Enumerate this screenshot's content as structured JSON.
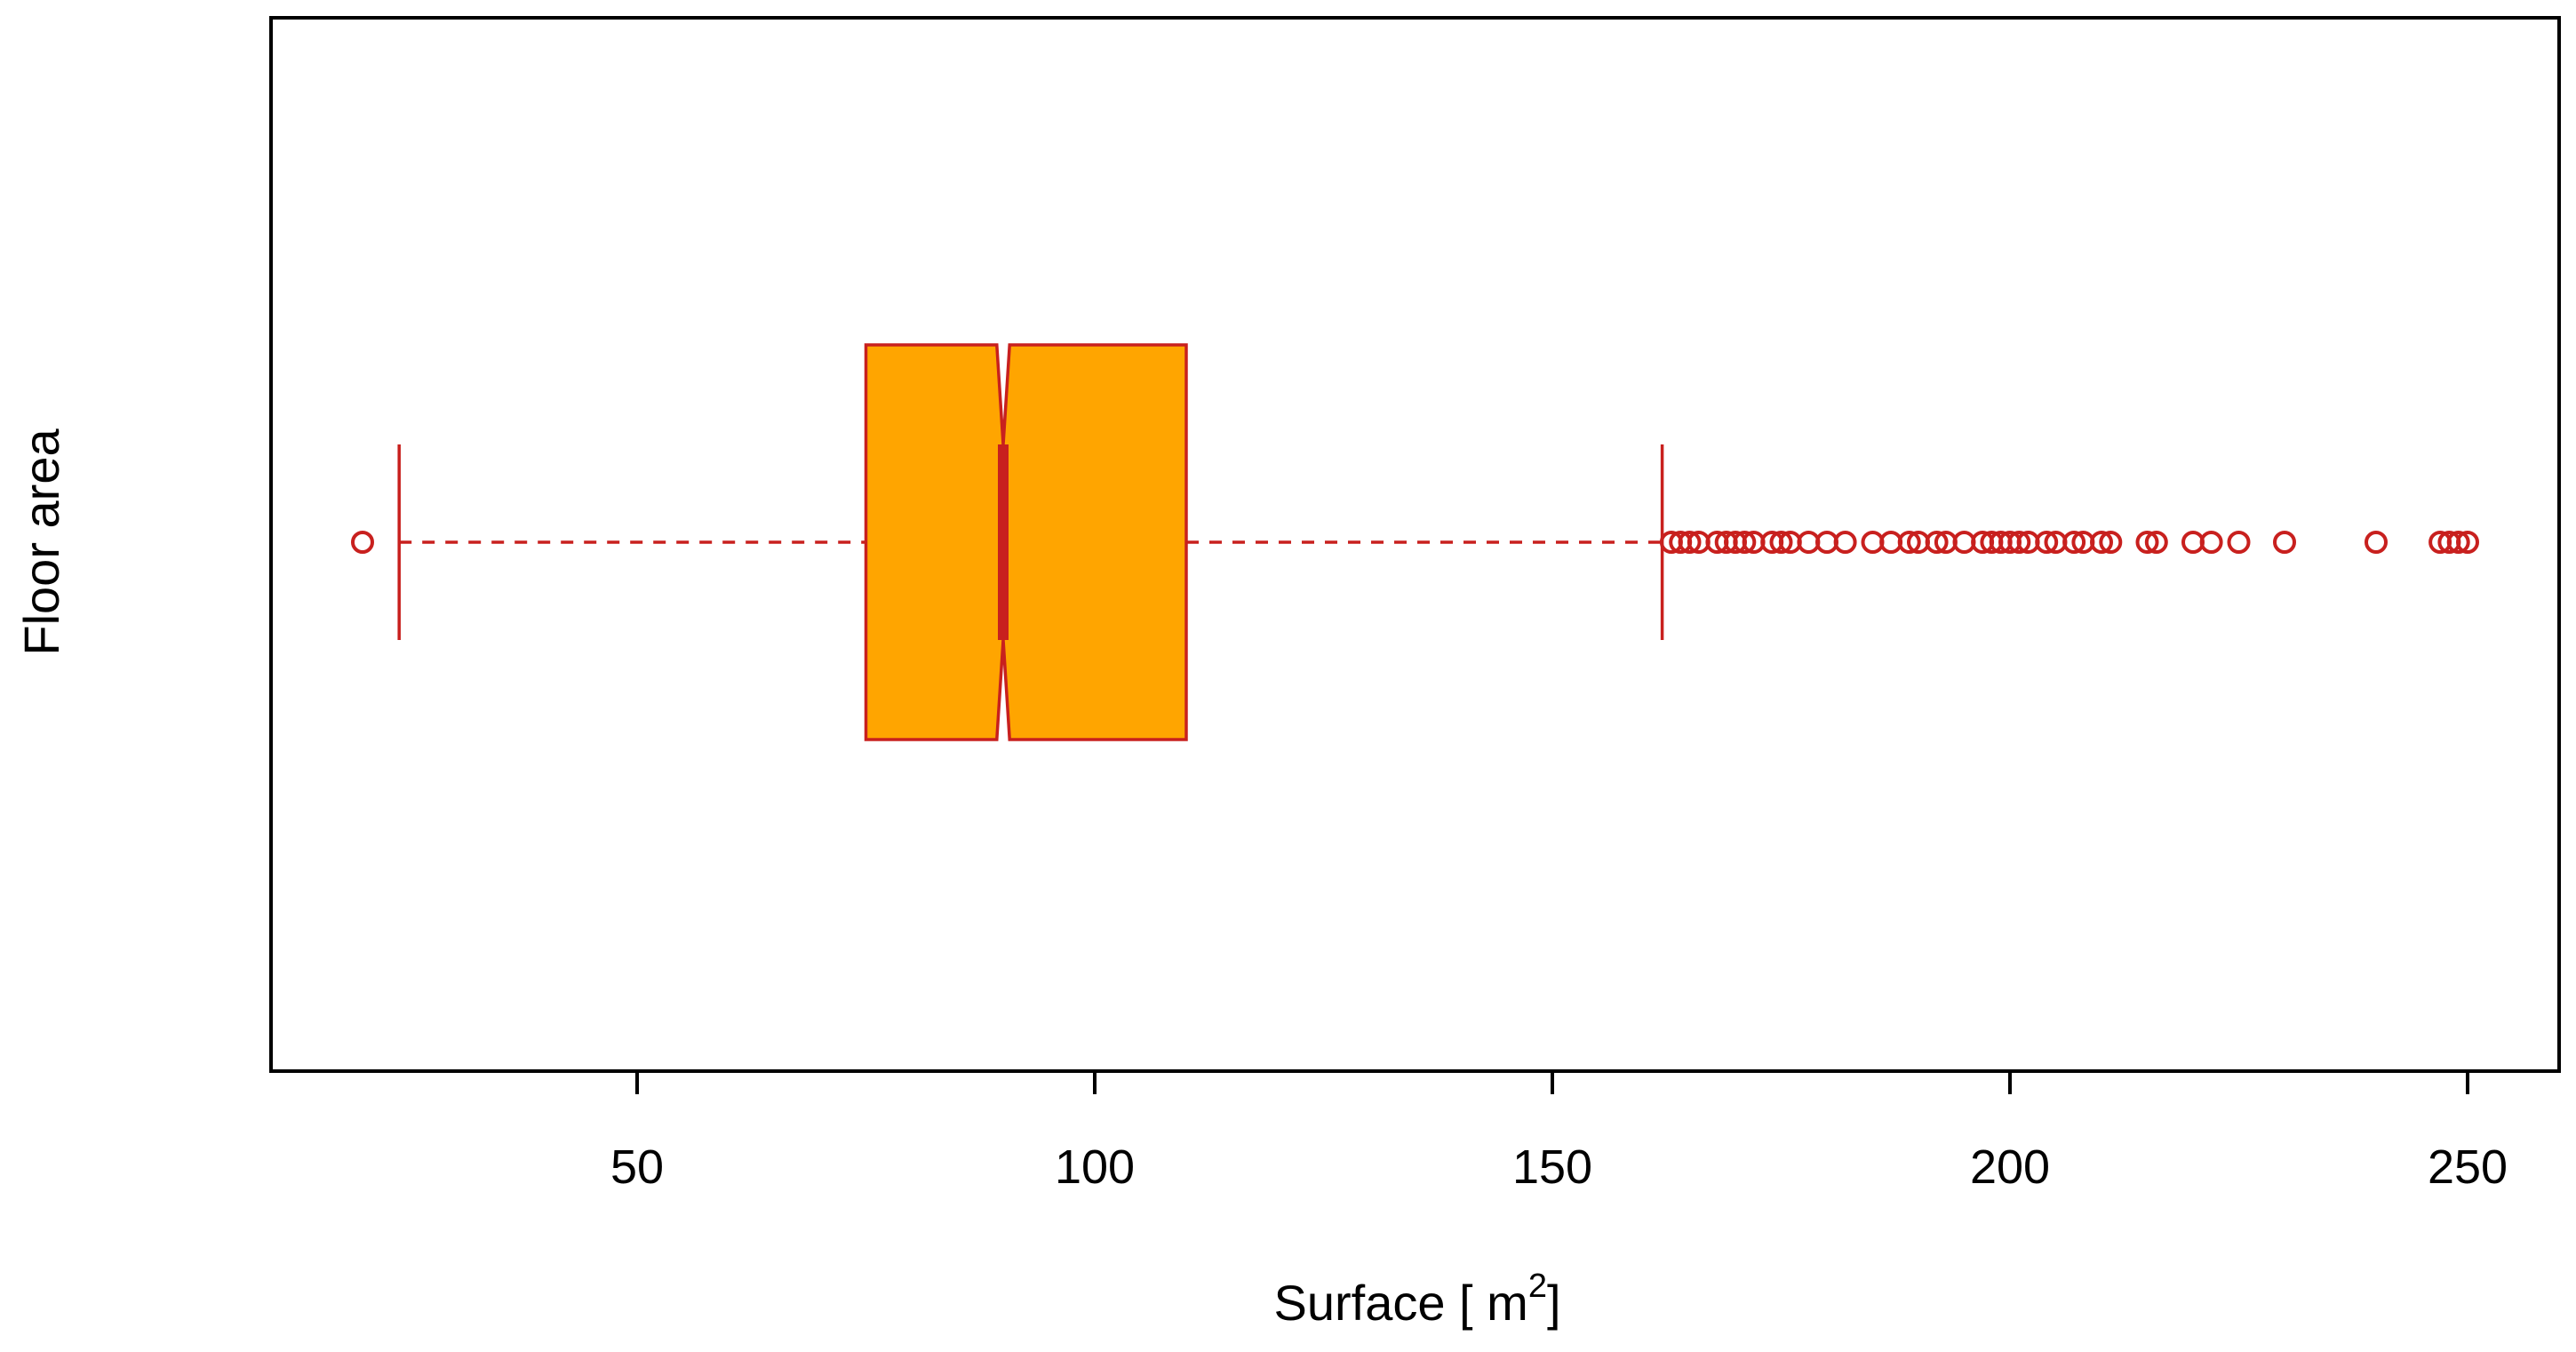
{
  "chart_data": {
    "type": "boxplot",
    "orientation": "horizontal",
    "notched": true,
    "category_label": "Floor area",
    "xlabel": "Surface [ m",
    "xlabel_superscript": "2",
    "xlabel_suffix": "]",
    "xlim": [
      10,
      260
    ],
    "xticks": [
      50,
      100,
      150,
      200,
      250
    ],
    "xtick_labels": [
      "50",
      "100",
      "150",
      "200",
      "250"
    ],
    "box": {
      "whisker_low": 24,
      "q1": 75,
      "median": 90,
      "q3": 110,
      "whisker_high": 162,
      "notch_low": 89.3,
      "notch_high": 90.7
    },
    "outliers": [
      20,
      163,
      164,
      165,
      166,
      168,
      169,
      170,
      171,
      172,
      174,
      175,
      176,
      178,
      180,
      182,
      185,
      187,
      189,
      190,
      192,
      193,
      195,
      197,
      198,
      199,
      200,
      201,
      202,
      204,
      205,
      207,
      208,
      210,
      211,
      215,
      216,
      220,
      222,
      225,
      230,
      240,
      247,
      248,
      249,
      250
    ],
    "colors": {
      "box_fill": "#FFA500",
      "box_stroke": "#C8201E",
      "outlier": "#C8201E",
      "axis": "#000000"
    },
    "grid": false,
    "legend": "none"
  }
}
